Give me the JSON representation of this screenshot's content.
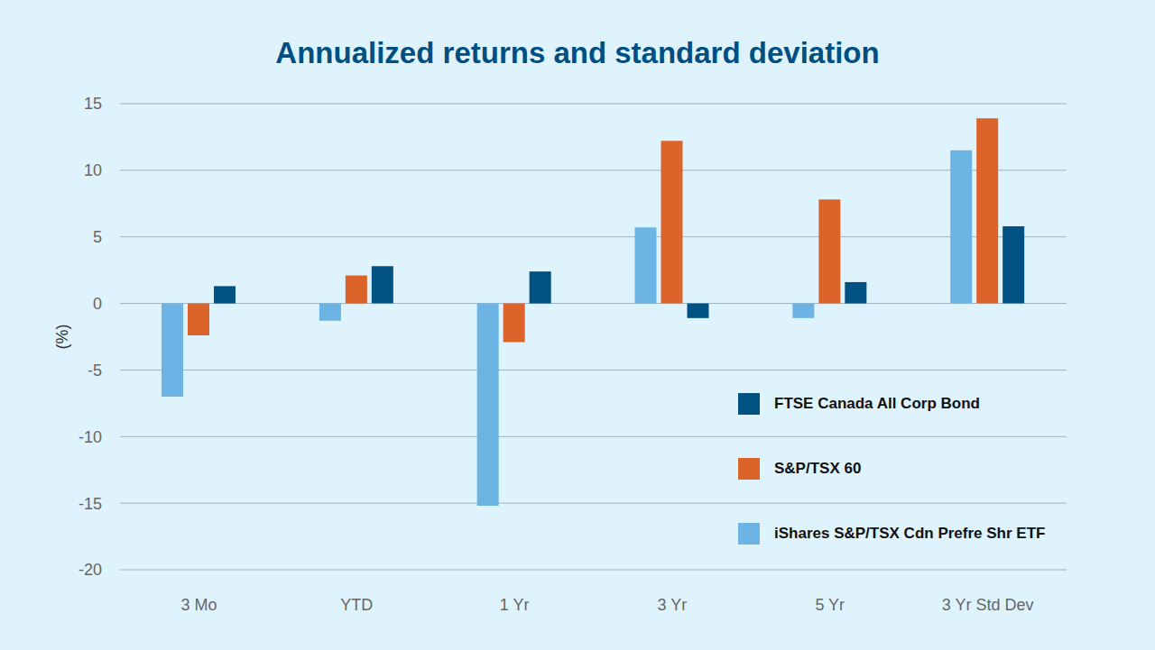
{
  "chart_data": {
    "type": "bar",
    "title": "Annualized returns and standard deviation",
    "y_label": "(%)",
    "categories": [
      "3 Mo",
      "YTD",
      "1 Yr",
      "3 Yr",
      "5 Yr",
      "3 Yr Std Dev"
    ],
    "series": [
      {
        "name": "iShares S&P/TSX Cdn Prefre Shr ETF",
        "color": "#6cb4e4",
        "values": [
          -7.0,
          -1.3,
          -15.2,
          5.7,
          -1.1,
          11.5
        ]
      },
      {
        "name": "S&P/TSX 60",
        "color": "#dc6329",
        "values": [
          -2.4,
          2.1,
          -2.9,
          12.2,
          7.8,
          13.9
        ]
      },
      {
        "name": "FTSE Canada All Corp Bond",
        "color": "#005283",
        "values": [
          1.3,
          2.8,
          2.4,
          -1.1,
          1.6,
          5.8
        ]
      }
    ],
    "ylim": [
      -20,
      15
    ],
    "yticks": [
      -20,
      -15,
      -10,
      -5,
      0,
      5,
      10,
      15
    ],
    "grid": true,
    "legend": "lower right"
  }
}
